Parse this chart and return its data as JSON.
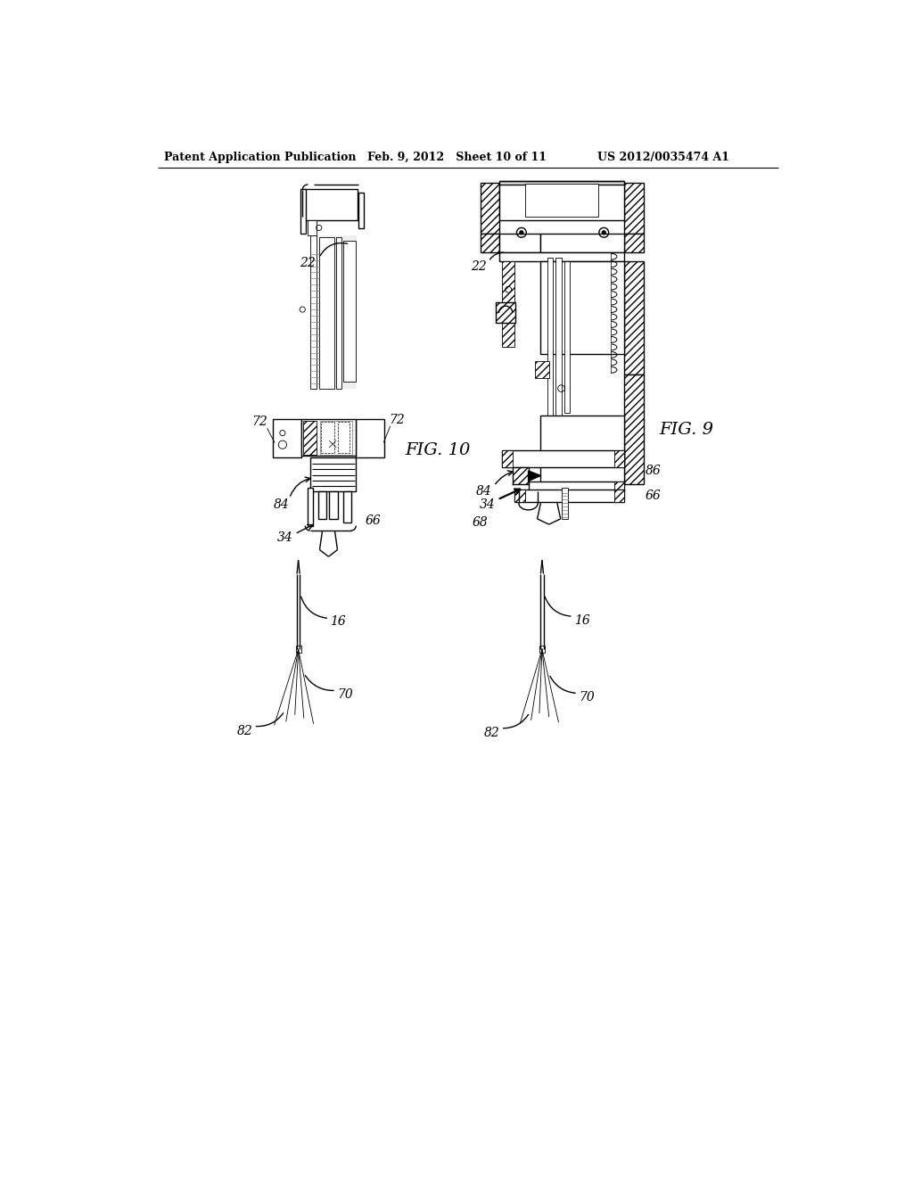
{
  "header_left": "Patent Application Publication",
  "header_mid": "Feb. 9, 2012   Sheet 10 of 11",
  "header_right": "US 2012/0035474 A1",
  "fig10_label": "FIG. 10",
  "fig9_label": "FIG. 9",
  "bg_color": "#ffffff",
  "line_color": "#000000"
}
